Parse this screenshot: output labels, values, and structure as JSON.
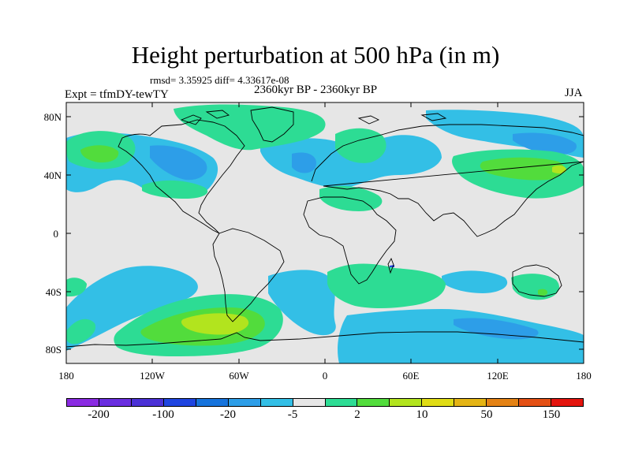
{
  "title": "Height perturbation at 500 hPa (in m)",
  "stats_line": "rmsd= 3.35925 diff= 4.33617e-08",
  "experiment_label": "Expt = tfmDY-tewTY",
  "period_label": "2360kyr BP - 2360kyr BP",
  "season_label": "JJA",
  "lat_ticks": [
    "80N",
    "40N",
    "0",
    "40S",
    "80S"
  ],
  "lon_ticks": [
    "180",
    "120W",
    "60W",
    "0",
    "60E",
    "120E",
    "180"
  ],
  "colorbar": {
    "colors": [
      "#8a2be2",
      "#6a2ee0",
      "#4b31d6",
      "#1f45e0",
      "#1673dc",
      "#2d9ee8",
      "#33bfe6",
      "#e6e6e6",
      "#2ddc94",
      "#52dc3c",
      "#b2e41e",
      "#e0dc14",
      "#e4b414",
      "#e48214",
      "#e45014",
      "#e4140e"
    ],
    "labels": [
      "-200",
      "-100",
      "-20",
      "-5",
      "2",
      "10",
      "50",
      "150"
    ]
  },
  "field_colors": {
    "ocean_bg": "#e6e6e6",
    "light_blue": "#33bfe6",
    "mid_blue": "#2d9ee8",
    "green": "#2ddc94",
    "bright_green": "#52dc3c",
    "yellow_green": "#b2e41e"
  }
}
